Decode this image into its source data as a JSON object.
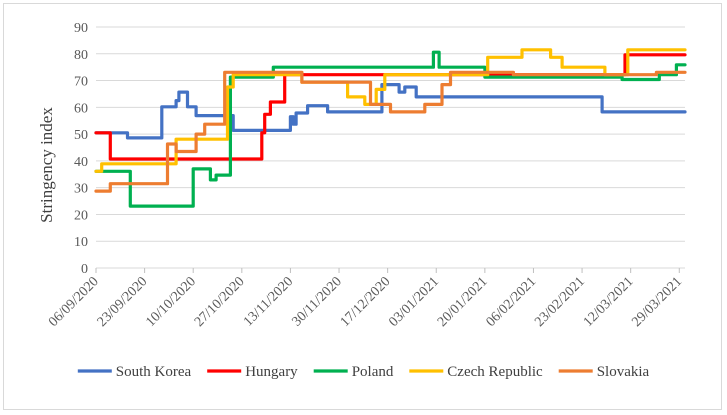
{
  "chart_data": {
    "type": "line",
    "title": "",
    "xlabel": "",
    "ylabel": "Stringency index",
    "ylim": [
      0,
      90
    ],
    "yticks": [
      0,
      10,
      20,
      30,
      40,
      50,
      60,
      70,
      80,
      90
    ],
    "xlim": [
      0,
      206
    ],
    "xticks": [
      {
        "day": 0,
        "label": "06/09/2020"
      },
      {
        "day": 17,
        "label": "23/09/2020"
      },
      {
        "day": 34,
        "label": "10/10/2020"
      },
      {
        "day": 51,
        "label": "27/10/2020"
      },
      {
        "day": 68,
        "label": "13/11/2020"
      },
      {
        "day": 85,
        "label": "30/11/2020"
      },
      {
        "day": 102,
        "label": "17/12/2020"
      },
      {
        "day": 119,
        "label": "03/01/2021"
      },
      {
        "day": 136,
        "label": "20/01/2021"
      },
      {
        "day": 153,
        "label": "06/02/2021"
      },
      {
        "day": 170,
        "label": "23/02/2021"
      },
      {
        "day": 187,
        "label": "12/03/2021"
      },
      {
        "day": 204,
        "label": "29/03/2021"
      }
    ],
    "grid": true,
    "legend_position": "bottom",
    "series": [
      {
        "name": "South Korea",
        "color": "#4472c4",
        "points": [
          [
            0,
            50.5
          ],
          [
            11,
            50.5
          ],
          [
            11,
            48.6
          ],
          [
            23,
            48.6
          ],
          [
            23,
            60.2
          ],
          [
            28,
            60.2
          ],
          [
            28,
            62.5
          ],
          [
            29,
            62.5
          ],
          [
            29,
            65.7
          ],
          [
            32,
            65.7
          ],
          [
            32,
            60.2
          ],
          [
            35,
            60.2
          ],
          [
            35,
            56.9
          ],
          [
            48,
            56.9
          ],
          [
            48,
            51.4
          ],
          [
            68,
            51.4
          ],
          [
            68,
            56.5
          ],
          [
            69,
            56.5
          ],
          [
            69,
            53.7
          ],
          [
            70,
            53.7
          ],
          [
            70,
            57.9
          ],
          [
            74,
            57.9
          ],
          [
            74,
            60.6
          ],
          [
            81,
            60.6
          ],
          [
            81,
            58.3
          ],
          [
            100,
            58.3
          ],
          [
            100,
            68.5
          ],
          [
            106,
            68.5
          ],
          [
            106,
            65.7
          ],
          [
            108,
            65.7
          ],
          [
            108,
            67.6
          ],
          [
            112,
            67.6
          ],
          [
            112,
            63.9
          ],
          [
            177,
            63.9
          ],
          [
            177,
            58.3
          ],
          [
            206,
            58.3
          ]
        ]
      },
      {
        "name": "Hungary",
        "color": "#ff0000",
        "points": [
          [
            0,
            50.5
          ],
          [
            5,
            50.5
          ],
          [
            5,
            40.7
          ],
          [
            58,
            40.7
          ],
          [
            58,
            50.5
          ],
          [
            59,
            50.5
          ],
          [
            59,
            57.4
          ],
          [
            61,
            57.4
          ],
          [
            61,
            62
          ],
          [
            66,
            62
          ],
          [
            66,
            72.2
          ],
          [
            110,
            72.2
          ],
          [
            110,
            72.2
          ],
          [
            185,
            72.2
          ],
          [
            185,
            79.6
          ],
          [
            206,
            79.6
          ]
        ]
      },
      {
        "name": "Poland",
        "color": "#00b050",
        "points": [
          [
            0,
            36.1
          ],
          [
            12,
            36.1
          ],
          [
            12,
            23.1
          ],
          [
            34,
            23.1
          ],
          [
            34,
            37
          ],
          [
            40,
            37
          ],
          [
            40,
            32.9
          ],
          [
            42,
            32.9
          ],
          [
            42,
            34.7
          ],
          [
            47,
            34.7
          ],
          [
            47,
            71.3
          ],
          [
            62,
            71.3
          ],
          [
            62,
            75
          ],
          [
            118,
            75
          ],
          [
            118,
            80.6
          ],
          [
            120,
            80.6
          ],
          [
            120,
            75
          ],
          [
            136,
            75
          ],
          [
            136,
            71.3
          ],
          [
            184,
            71.3
          ],
          [
            184,
            70.4
          ],
          [
            197,
            70.4
          ],
          [
            197,
            72.2
          ],
          [
            203,
            72.2
          ],
          [
            203,
            75.9
          ],
          [
            206,
            75.9
          ]
        ]
      },
      {
        "name": "Czech Republic",
        "color": "#ffc000",
        "points": [
          [
            0,
            36.1
          ],
          [
            2,
            36.1
          ],
          [
            2,
            38.9
          ],
          [
            28,
            38.9
          ],
          [
            28,
            48.1
          ],
          [
            46,
            48.1
          ],
          [
            46,
            67.6
          ],
          [
            48,
            67.6
          ],
          [
            48,
            72.2
          ],
          [
            72,
            72.2
          ],
          [
            72,
            69.4
          ],
          [
            88,
            69.4
          ],
          [
            88,
            63.9
          ],
          [
            94,
            63.9
          ],
          [
            94,
            61.1
          ],
          [
            98,
            61.1
          ],
          [
            98,
            66.7
          ],
          [
            101,
            66.7
          ],
          [
            101,
            72.2
          ],
          [
            137,
            72.2
          ],
          [
            137,
            78.7
          ],
          [
            149,
            78.7
          ],
          [
            149,
            81.5
          ],
          [
            159,
            81.5
          ],
          [
            159,
            78.7
          ],
          [
            163,
            78.7
          ],
          [
            163,
            75
          ],
          [
            178,
            75
          ],
          [
            178,
            72.2
          ],
          [
            186,
            72.2
          ],
          [
            186,
            81.5
          ],
          [
            206,
            81.5
          ]
        ]
      },
      {
        "name": "Slovakia",
        "color": "#ed7d31",
        "points": [
          [
            0,
            28.7
          ],
          [
            5,
            28.7
          ],
          [
            5,
            31.5
          ],
          [
            25,
            31.5
          ],
          [
            25,
            46.3
          ],
          [
            28,
            46.3
          ],
          [
            28,
            43.5
          ],
          [
            35,
            43.5
          ],
          [
            35,
            50
          ],
          [
            38,
            50
          ],
          [
            38,
            53.7
          ],
          [
            45,
            53.7
          ],
          [
            45,
            73.1
          ],
          [
            72,
            73.1
          ],
          [
            72,
            69.4
          ],
          [
            96,
            69.4
          ],
          [
            96,
            61.1
          ],
          [
            103,
            61.1
          ],
          [
            103,
            58.3
          ],
          [
            115,
            58.3
          ],
          [
            115,
            61.1
          ],
          [
            121,
            61.1
          ],
          [
            121,
            68.5
          ],
          [
            124,
            68.5
          ],
          [
            124,
            73.1
          ],
          [
            146,
            73.1
          ],
          [
            146,
            72.2
          ],
          [
            196,
            72.2
          ],
          [
            196,
            73.1
          ],
          [
            206,
            73.1
          ]
        ]
      }
    ]
  }
}
